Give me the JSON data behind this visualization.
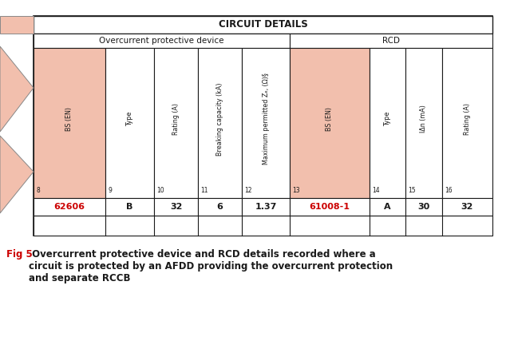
{
  "title_text": "CIRCUIT DETAILS",
  "group1_label": "Overcurrent protective device",
  "group2_label": "RCD",
  "col_numbers": [
    "8",
    "9",
    "10",
    "11",
    "12",
    "13",
    "14",
    "15",
    "16"
  ],
  "col_headers": [
    "BS (EN)",
    "Type",
    "Rating (A)",
    "Breaking capacity (kA)",
    "Maximum permitted Zₑ, (Ω)§",
    "BS (EN)",
    "Type",
    "IΔn (mA)",
    "Rating (A)"
  ],
  "row_values": [
    "62606",
    "B",
    "32",
    "6",
    "1.37",
    "61008-1",
    "A",
    "30",
    "32"
  ],
  "pink_bg_cols": [
    0,
    5
  ],
  "red_value_cols": [
    0,
    5
  ],
  "salmon_color": "#f2bfad",
  "red_color": "#cc0000",
  "black_color": "#1a1a1a",
  "white_color": "#ffffff",
  "group1_col_span": [
    0,
    5
  ],
  "group2_col_span": [
    5,
    9
  ],
  "fig5_label": "Fig 5",
  "caption_text": " Overcurrent protective device and RCD details recorded where a\ncircuit is protected by an AFDD providing the overcurrent protection\nand separate RCCB"
}
